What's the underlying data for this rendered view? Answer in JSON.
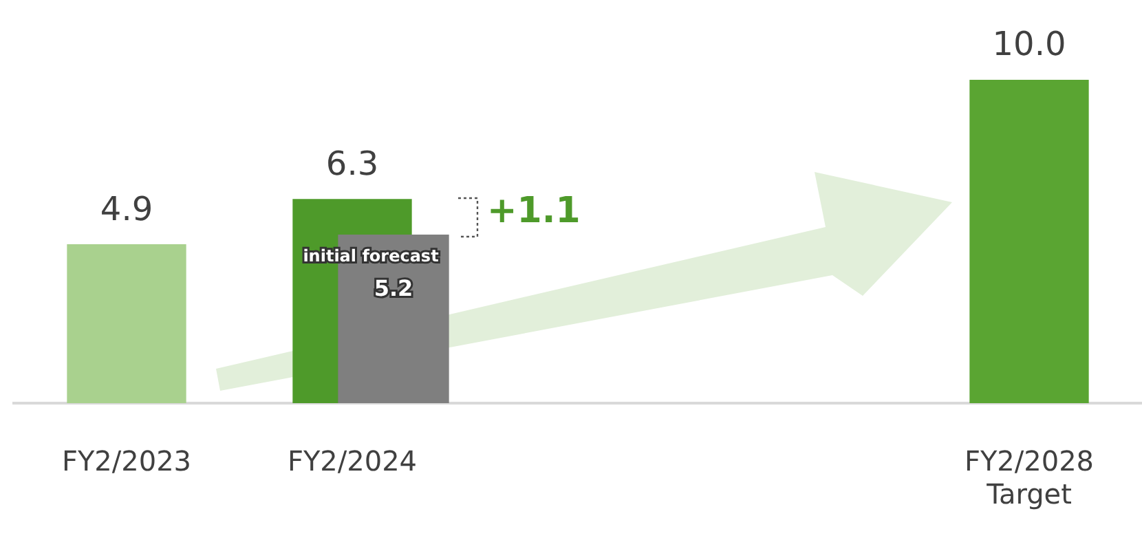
{
  "chart_data": {
    "type": "bar",
    "categories": [
      "FY2/2023",
      "FY2/2024",
      null,
      null,
      "FY2/2028\nTarget"
    ],
    "series": [
      {
        "colors": [
          "#a9d18e",
          "#4e9a2a",
          null,
          null,
          "#5aa532"
        ],
        "values": [
          4.9,
          6.3,
          null,
          null,
          10.0
        ],
        "value_labels": [
          "4.9",
          "6.3",
          null,
          null,
          "10.0"
        ]
      },
      {
        "color": "#7f7f7f",
        "values": [
          null,
          5.2,
          null,
          null,
          null
        ],
        "value_labels": [
          null,
          "5.2",
          null,
          null,
          null
        ]
      }
    ],
    "tick_labels": "x",
    "grid": false,
    "legend": false,
    "annotations": [
      {
        "text": "initial forecast",
        "x": "FY2/2024",
        "y": 5.2
      },
      "+1.1"
    ]
  }
}
